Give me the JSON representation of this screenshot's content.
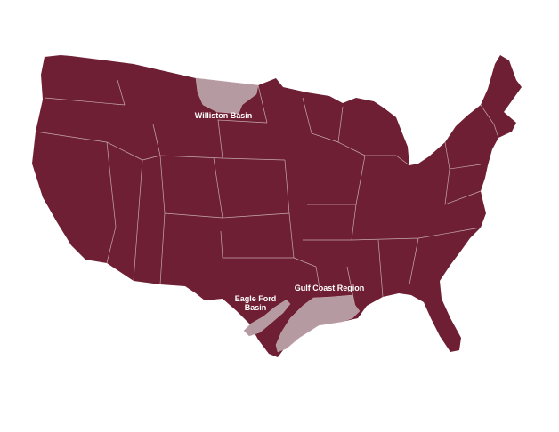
{
  "map": {
    "colors": {
      "land": "#6e1f33",
      "basin": "#b59aa1",
      "borders": "#c7a9b0"
    },
    "regions": [
      {
        "id": "williston",
        "label_lines": [
          "Williston Basin"
        ]
      },
      {
        "id": "eagle-ford",
        "label_lines": [
          "Eagle Ford",
          "Basin"
        ]
      },
      {
        "id": "gulf-coast",
        "label_lines": [
          "Gulf Coast Region"
        ]
      }
    ]
  }
}
